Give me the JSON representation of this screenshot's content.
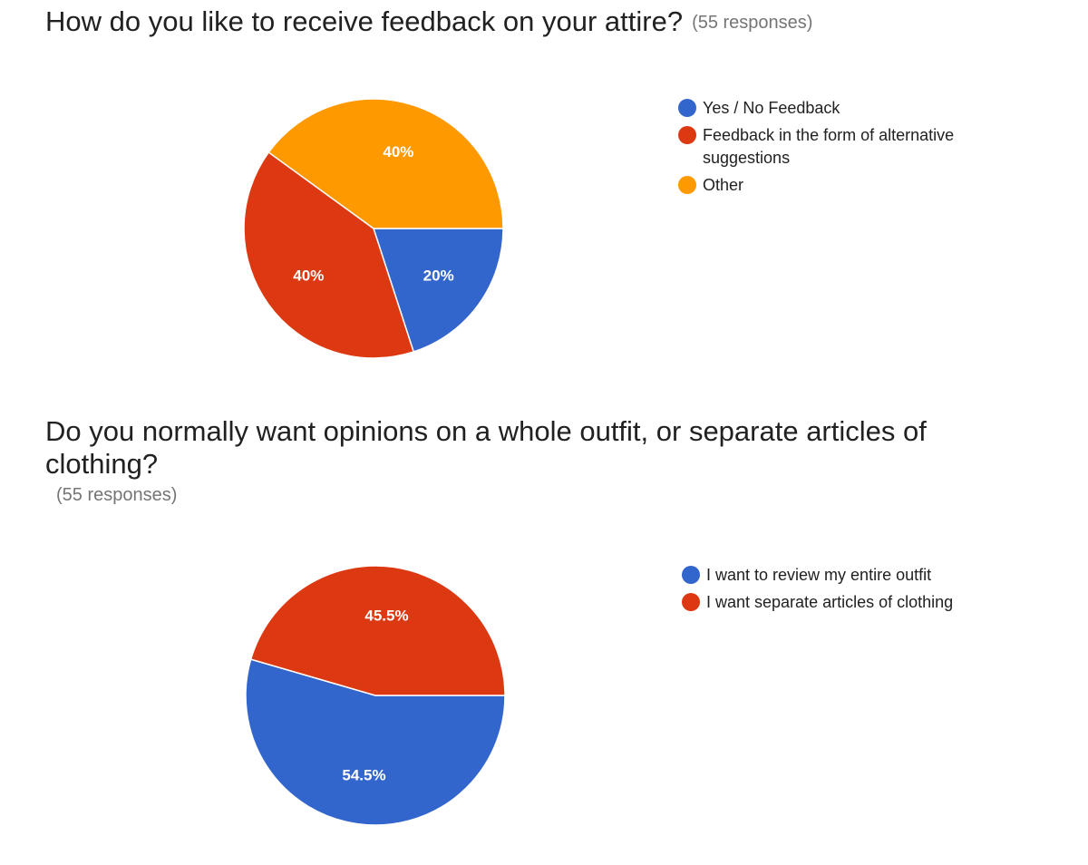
{
  "chart_data": [
    {
      "type": "pie",
      "title": "How do you like to receive feedback on your attire?",
      "subtitle": "(55 responses)",
      "categories": [
        "Yes / No Feedback",
        "Feedback in the form of alternative suggestions",
        "Other"
      ],
      "values": [
        20,
        40,
        40
      ],
      "data_labels": [
        "20%",
        "40%",
        "40%"
      ],
      "colors": [
        "#3366cc",
        "#dc3912",
        "#ff9900"
      ],
      "start_angle_deg": 90,
      "legend": "right"
    },
    {
      "type": "pie",
      "title": "Do you normally want opinions on a whole outfit, or separate articles of clothing?",
      "subtitle": "(55 responses)",
      "categories": [
        "I want to review my entire outfit",
        "I want separate articles of clothing"
      ],
      "values": [
        54.5,
        45.5
      ],
      "data_labels": [
        "54.5%",
        "45.5%"
      ],
      "colors": [
        "#3366cc",
        "#dc3912"
      ],
      "start_angle_deg": 90,
      "legend": "right"
    }
  ]
}
